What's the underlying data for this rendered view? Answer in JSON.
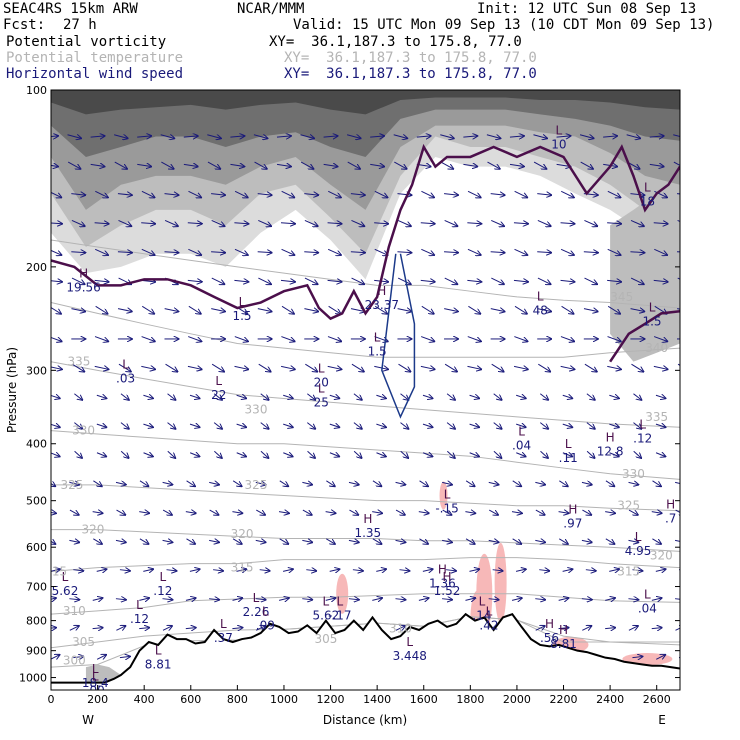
{
  "header": {
    "model": "SEAC4RS 15km ARW",
    "org": "NCAR/MMM",
    "init": "Init: 12 UTC Sun 08 Sep 13",
    "fcst_label": "Fcst:",
    "fcst_value": "27 h",
    "valid": "Valid: 15 UTC Mon 09 Sep 13 (10 CDT Mon 09 Sep 13)",
    "fields": [
      {
        "name": "Potential vorticity",
        "xy": "XY=  36.1,187.3 to 175.8, 77.0",
        "color": "#000000"
      },
      {
        "name": "Potential temperature",
        "xy": "XY=  36.1,187.3 to 175.8, 77.0",
        "color": "#b4b4b4"
      },
      {
        "name": "Horizontal wind speed",
        "xy": "XY=  36.1,187.3 to 175.8, 77.0",
        "color": "#1a1a7a"
      }
    ]
  },
  "chart_data": {
    "type": "cross-section",
    "xlabel": "Distance (km)",
    "ylabel": "Pressure (hPa)",
    "xlim": [
      0,
      2700
    ],
    "ylim": [
      1050,
      100
    ],
    "y_scale": "log-pressure",
    "x_ticks": [
      "0",
      "200",
      "400",
      "600",
      "800",
      "1000",
      "1200",
      "1400",
      "1600",
      "1800",
      "2000",
      "2200",
      "2400",
      "2600"
    ],
    "y_ticks": [
      "100",
      "200",
      "300",
      "400",
      "500",
      "600",
      "700",
      "800",
      "900",
      "1000"
    ],
    "x_end_labels": {
      "west": "W",
      "east": "E"
    },
    "terrain_pressure": {
      "x": [
        0,
        150,
        230,
        270,
        300,
        340,
        380,
        420,
        460,
        500,
        540,
        580,
        620,
        660,
        700,
        740,
        780,
        820,
        860,
        900,
        940,
        980,
        1020,
        1060,
        1100,
        1140,
        1180,
        1220,
        1260,
        1300,
        1340,
        1380,
        1420,
        1460,
        1500,
        1540,
        1580,
        1620,
        1660,
        1700,
        1740,
        1780,
        1820,
        1860,
        1900,
        1940,
        1980,
        2020,
        2060,
        2100,
        2140,
        2180,
        2220,
        2260,
        2300,
        2340,
        2380,
        2420,
        2460,
        2500,
        2540,
        2580,
        2620,
        2660,
        2700
      ],
      "p": [
        1020,
        1020,
        1020,
        1005,
        990,
        960,
        900,
        870,
        880,
        845,
        860,
        860,
        875,
        870,
        830,
        860,
        870,
        860,
        855,
        840,
        810,
        820,
        840,
        835,
        815,
        840,
        800,
        840,
        830,
        800,
        830,
        790,
        830,
        860,
        850,
        820,
        830,
        810,
        800,
        820,
        810,
        780,
        800,
        790,
        830,
        790,
        780,
        820,
        860,
        880,
        885,
        880,
        890,
        900,
        905,
        915,
        925,
        930,
        940,
        945,
        950,
        955,
        955,
        960,
        965
      ]
    },
    "pv_extrema_labels": [
      {
        "type": "H",
        "value": "19.56",
        "x": 140,
        "p": 210
      },
      {
        "type": "L",
        "value": ".03",
        "x": 320,
        "p": 300
      },
      {
        "type": "L",
        "value": "22",
        "x": 720,
        "p": 320
      },
      {
        "type": "L",
        "value": "1.5",
        "x": 820,
        "p": 235
      },
      {
        "type": "L",
        "value": "20",
        "x": 1160,
        "p": 305
      },
      {
        "type": "L",
        "value": "25",
        "x": 1160,
        "p": 330
      },
      {
        "type": "H",
        "value": "23.37",
        "x": 1420,
        "p": 225
      },
      {
        "type": "L",
        "value": "1.5",
        "x": 1400,
        "p": 270
      },
      {
        "type": "L",
        "value": "48",
        "x": 2100,
        "p": 230
      },
      {
        "type": "L",
        "value": "10",
        "x": 2180,
        "p": 120
      },
      {
        "type": "L",
        "value": "18",
        "x": 2560,
        "p": 150
      },
      {
        "type": "L",
        "value": "1.5",
        "x": 2580,
        "p": 240
      },
      {
        "type": "L",
        "value": ".04",
        "x": 2020,
        "p": 390
      },
      {
        "type": "L",
        "value": ".11",
        "x": 2220,
        "p": 410
      },
      {
        "type": "H",
        "value": "12.8",
        "x": 2400,
        "p": 400
      },
      {
        "type": "L",
        "value": ".12",
        "x": 2540,
        "p": 380
      },
      {
        "type": "L",
        "value": "-.15",
        "x": 1700,
        "p": 500
      },
      {
        "type": "H",
        "value": "1.35",
        "x": 1360,
        "p": 550
      },
      {
        "type": "H",
        "value": ".97",
        "x": 2240,
        "p": 530
      },
      {
        "type": "H",
        "value": ".7",
        "x": 2660,
        "p": 520
      },
      {
        "type": "L",
        "value": "4.95",
        "x": 2520,
        "p": 590
      },
      {
        "type": "L",
        "value": "5.62",
        "x": 60,
        "p": 690
      },
      {
        "type": "L",
        "value": ".12",
        "x": 480,
        "p": 690
      },
      {
        "type": "L",
        "value": ".12",
        "x": 380,
        "p": 770
      },
      {
        "type": "L",
        "value": "2.26",
        "x": 880,
        "p": 750
      },
      {
        "type": "L",
        "value": ".09",
        "x": 920,
        "p": 790
      },
      {
        "type": "L",
        "value": ".37",
        "x": 740,
        "p": 830
      },
      {
        "type": "L",
        "value": "5.62",
        "x": 1180,
        "p": 760
      },
      {
        "type": "L",
        "value": "-.17",
        "x": 1240,
        "p": 760
      },
      {
        "type": "H",
        "value": "1.36",
        "x": 1680,
        "p": 670
      },
      {
        "type": "H",
        "value": "1.52",
        "x": 1700,
        "p": 690
      },
      {
        "type": "L",
        "value": ".14",
        "x": 1850,
        "p": 760
      },
      {
        "type": "L",
        "value": ".42",
        "x": 1880,
        "p": 790
      },
      {
        "type": "L",
        "value": ".04",
        "x": 2560,
        "p": 740
      },
      {
        "type": "H",
        "value": ".56",
        "x": 2140,
        "p": 830
      },
      {
        "type": "H",
        "value": "8.81",
        "x": 2200,
        "p": 850
      },
      {
        "type": "L",
        "value": "3.448",
        "x": 1540,
        "p": 890
      },
      {
        "type": "L",
        "value": "8.81",
        "x": 460,
        "p": 920
      },
      {
        "type": "L",
        "value": "18.4",
        "x": 190,
        "p": 990
      },
      {
        "type": "L",
        "value": ".00",
        "x": 190,
        "p": 1020
      }
    ],
    "theta_contour_labels": [
      {
        "value": "335",
        "x": 120,
        "p": 290
      },
      {
        "value": "330",
        "x": 140,
        "p": 380
      },
      {
        "value": "330",
        "x": 880,
        "p": 350
      },
      {
        "value": "325",
        "x": 90,
        "p": 470
      },
      {
        "value": "325",
        "x": 880,
        "p": 470
      },
      {
        "value": "320",
        "x": 180,
        "p": 560
      },
      {
        "value": "320",
        "x": 820,
        "p": 570
      },
      {
        "value": "315",
        "x": 20,
        "p": 660
      },
      {
        "value": "315",
        "x": 820,
        "p": 650
      },
      {
        "value": "310",
        "x": 100,
        "p": 770
      },
      {
        "value": "305",
        "x": 140,
        "p": 870
      },
      {
        "value": "300",
        "x": 100,
        "p": 935
      },
      {
        "value": "345",
        "x": 2450,
        "p": 225
      },
      {
        "value": "340",
        "x": 2600,
        "p": 275
      },
      {
        "value": "335",
        "x": 2600,
        "p": 360
      },
      {
        "value": "330",
        "x": 2500,
        "p": 450
      },
      {
        "value": "325",
        "x": 2480,
        "p": 510
      },
      {
        "value": "320",
        "x": 2620,
        "p": 620
      },
      {
        "value": "315",
        "x": 2480,
        "p": 660
      },
      {
        "value": "305",
        "x": 1180,
        "p": 860
      },
      {
        "value": "310",
        "x": 1500,
        "p": 825
      }
    ],
    "theta_levels": [
      {
        "value": "300",
        "p": [
          960,
          950,
          930,
          900,
          880,
          870,
          870,
          870,
          870,
          870,
          870,
          870,
          870,
          870
        ]
      },
      {
        "value": "305",
        "p": [
          890,
          870,
          850,
          840,
          830,
          830,
          830,
          825,
          820,
          820,
          830,
          850,
          870,
          880
        ]
      },
      {
        "value": "310",
        "p": [
          780,
          770,
          760,
          740,
          735,
          730,
          730,
          725,
          720,
          720,
          720,
          730,
          740,
          745
        ]
      },
      {
        "value": "315",
        "p": [
          660,
          650,
          645,
          640,
          640,
          630,
          630,
          630,
          630,
          625,
          625,
          630,
          640,
          650
        ]
      },
      {
        "value": "320",
        "p": [
          560,
          560,
          565,
          570,
          575,
          580,
          580,
          580,
          585,
          585,
          590,
          595,
          600,
          610
        ]
      },
      {
        "value": "325",
        "p": [
          470,
          470,
          475,
          480,
          485,
          490,
          495,
          500,
          500,
          505,
          510,
          510,
          515,
          520
        ]
      },
      {
        "value": "330",
        "p": [
          380,
          385,
          390,
          395,
          400,
          400,
          405,
          410,
          415,
          420,
          430,
          440,
          450,
          460
        ]
      },
      {
        "value": "335",
        "p": [
          290,
          300,
          310,
          320,
          330,
          335,
          340,
          345,
          350,
          355,
          360,
          365,
          370,
          375
        ]
      },
      {
        "value": "340",
        "p": [
          230,
          240,
          250,
          260,
          270,
          275,
          280,
          285,
          285,
          285,
          285,
          285,
          280,
          275
        ]
      },
      {
        "value": "345",
        "p": [
          180,
          185,
          190,
          195,
          200,
          205,
          210,
          215,
          215,
          220,
          225,
          228,
          230,
          235
        ]
      }
    ],
    "wind_arrow_color": "#1a1a7a",
    "pv_contour_color": "#4b0f4b",
    "pv_shading": [
      "#dcdcdc",
      "#bdbdbd",
      "#9a9a9a",
      "#6f6f6f",
      "#4a4a4a"
    ],
    "negative_pv_color": "#f7b8b8",
    "wind_speed_contour_color": "#1c3a8a"
  }
}
